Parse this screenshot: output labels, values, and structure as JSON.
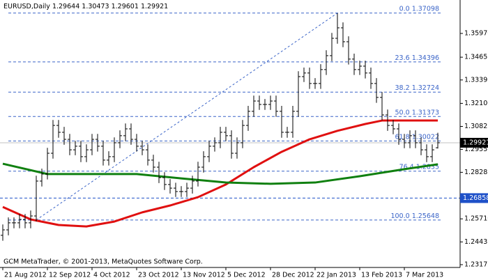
{
  "chart_data": {
    "type": "ohlc",
    "symbol": "EURUSD,Daily",
    "footer": "GCM MetaTrader, © 2001-2013, MetaQuotes Software Corp.",
    "bar_color": "#000000",
    "x": [
      0,
      1,
      2,
      3,
      4,
      5,
      6,
      7,
      8,
      9,
      10,
      11,
      12,
      13,
      14,
      15,
      16,
      17,
      18,
      19,
      20,
      21,
      22,
      23,
      24,
      25,
      26,
      27,
      28,
      29,
      30,
      31,
      32,
      33,
      34,
      35,
      36,
      37,
      38,
      39,
      40,
      41,
      42,
      43,
      44,
      45,
      46,
      47,
      48,
      49,
      50,
      51,
      52,
      53,
      54,
      55,
      56,
      57,
      58,
      59,
      60,
      61,
      62,
      63,
      64,
      65,
      66,
      67,
      68,
      69,
      70,
      71,
      72,
      73,
      74,
      75,
      76,
      77,
      78
    ],
    "open": [
      1.248,
      1.251,
      1.2549,
      1.2549,
      1.2568,
      1.2549,
      1.2587,
      1.278,
      1.2819,
      1.2934,
      1.3088,
      1.305,
      1.3011,
      1.2953,
      1.2973,
      1.2915,
      1.2953,
      1.3011,
      1.2973,
      1.2896,
      1.2915,
      1.2992,
      1.3031,
      1.3069,
      1.3011,
      1.2973,
      1.2953,
      1.2896,
      1.2857,
      1.2799,
      1.2761,
      1.2741,
      1.2722,
      1.2722,
      1.2741,
      1.278,
      1.2857,
      1.2915,
      1.2973,
      1.2992,
      1.305,
      1.3031,
      1.2934,
      1.2992,
      1.3088,
      1.3166,
      1.3223,
      1.3204,
      1.3204,
      1.3223,
      1.3166,
      1.305,
      1.305,
      1.3166,
      1.3358,
      1.3378,
      1.332,
      1.332,
      1.3397,
      1.3474,
      1.357,
      1.3628,
      1.3551,
      1.3455,
      1.3397,
      1.3416,
      1.3378,
      1.332,
      1.3243,
      1.3146,
      1.3088,
      1.3069,
      1.3011,
      1.2992,
      1.3031,
      1.2992,
      1.2953,
      1.2915,
      1.29644
    ],
    "high": [
      1.254,
      1.2579,
      1.2579,
      1.2598,
      1.2598,
      1.2617,
      1.281,
      1.2849,
      1.2964,
      1.3118,
      1.3118,
      1.308,
      1.3041,
      1.3003,
      1.3003,
      1.2983,
      1.3041,
      1.3041,
      1.3003,
      1.2945,
      1.3022,
      1.3061,
      1.3099,
      1.3099,
      1.3041,
      1.3003,
      1.2983,
      1.2926,
      1.2887,
      1.2829,
      1.2791,
      1.2771,
      1.2752,
      1.2771,
      1.281,
      1.2887,
      1.2945,
      1.3003,
      1.3022,
      1.308,
      1.308,
      1.3061,
      1.3022,
      1.3118,
      1.3196,
      1.3253,
      1.3253,
      1.3234,
      1.3253,
      1.3253,
      1.3196,
      1.308,
      1.3196,
      1.3388,
      1.3408,
      1.3408,
      1.335,
      1.3427,
      1.3504,
      1.36,
      1.3709,
      1.3658,
      1.3581,
      1.3485,
      1.3446,
      1.3446,
      1.3408,
      1.335,
      1.3273,
      1.3176,
      1.3118,
      1.3099,
      1.3041,
      1.3061,
      1.3061,
      1.3022,
      1.2983,
      1.2983,
      1.30473
    ],
    "low": [
      1.245,
      1.248,
      1.2519,
      1.2519,
      1.2519,
      1.2519,
      1.2557,
      1.275,
      1.2789,
      1.2904,
      1.302,
      1.2981,
      1.2923,
      1.2923,
      1.2885,
      1.2885,
      1.2923,
      1.2943,
      1.2866,
      1.2866,
      1.2885,
      1.2962,
      1.3001,
      1.2981,
      1.2943,
      1.2923,
      1.2866,
      1.2827,
      1.2769,
      1.2731,
      1.2711,
      1.2692,
      1.2692,
      1.2692,
      1.2711,
      1.275,
      1.2827,
      1.2885,
      1.2943,
      1.2962,
      1.3001,
      1.2904,
      1.2904,
      1.2962,
      1.3058,
      1.3136,
      1.3174,
      1.3174,
      1.3174,
      1.3136,
      1.302,
      1.302,
      1.302,
      1.3136,
      1.3328,
      1.329,
      1.329,
      1.329,
      1.3367,
      1.3444,
      1.354,
      1.3521,
      1.3425,
      1.3367,
      1.3367,
      1.3348,
      1.329,
      1.3213,
      1.3116,
      1.3058,
      1.3039,
      1.2981,
      1.2962,
      1.2962,
      1.2962,
      1.2923,
      1.2885,
      1.2885,
      1.29601
    ],
    "close": [
      1.251,
      1.2549,
      1.2549,
      1.2568,
      1.2549,
      1.2587,
      1.278,
      1.2819,
      1.2934,
      1.3088,
      1.305,
      1.3011,
      1.2953,
      1.2973,
      1.2915,
      1.2953,
      1.3011,
      1.2973,
      1.2896,
      1.2915,
      1.2992,
      1.3031,
      1.3069,
      1.3011,
      1.2973,
      1.2953,
      1.2896,
      1.2857,
      1.2799,
      1.2761,
      1.2741,
      1.2722,
      1.2722,
      1.2741,
      1.278,
      1.2857,
      1.2915,
      1.2973,
      1.2992,
      1.305,
      1.3031,
      1.2934,
      1.2992,
      1.3088,
      1.3166,
      1.3223,
      1.3204,
      1.3204,
      1.3223,
      1.3166,
      1.305,
      1.305,
      1.3166,
      1.3358,
      1.3378,
      1.332,
      1.332,
      1.3397,
      1.3474,
      1.357,
      1.3628,
      1.3551,
      1.3455,
      1.3397,
      1.3416,
      1.3378,
      1.332,
      1.3243,
      1.3146,
      1.3088,
      1.3069,
      1.3011,
      1.2992,
      1.3031,
      1.2992,
      1.2953,
      1.2915,
      1.2953,
      1.29921
    ],
    "lines": [
      {
        "color": "#e01010",
        "x": [
          0,
          5,
          10,
          15,
          20,
          25,
          30,
          35,
          40,
          45,
          50,
          55,
          60,
          65,
          68,
          78
        ],
        "values": [
          1.2637,
          1.2568,
          1.2537,
          1.2529,
          1.2556,
          1.2607,
          1.2645,
          1.2691,
          1.2761,
          1.2857,
          1.2942,
          1.3011,
          1.3058,
          1.3096,
          1.3115,
          1.3115
        ]
      },
      {
        "color": "#108010",
        "x": [
          0,
          8,
          16,
          24,
          32,
          40,
          48,
          56,
          64,
          72,
          78
        ],
        "values": [
          1.2876,
          1.2819,
          1.2819,
          1.2819,
          1.2795,
          1.2772,
          1.2765,
          1.2772,
          1.2807,
          1.2846,
          1.2873
        ]
      }
    ],
    "fibo": {
      "color": "#3a64c8",
      "x": [
        6,
        60
      ],
      "levels": [
        {
          "level": "0.0",
          "price": 1.37098
        },
        {
          "level": "23.6",
          "price": 1.34396
        },
        {
          "level": "38.2",
          "price": 1.32724
        },
        {
          "level": "50.0",
          "price": 1.31373
        },
        {
          "level": "61.8",
          "price": 1.30022
        },
        {
          "level": "76.4",
          "price": 1.2835
        },
        {
          "level": "100.0",
          "price": 1.25648
        }
      ]
    },
    "hline": {
      "value": 1.26858,
      "color": "#1e50c8"
    },
    "xlim": [
      -0.5,
      82
    ],
    "xticks": [
      {
        "value": 0,
        "label": "21 Aug 2012"
      },
      {
        "value": 8,
        "label": "12 Sep 2012"
      },
      {
        "value": 16,
        "label": "4 Oct 2012"
      },
      {
        "value": 24,
        "label": "23 Oct 2012"
      },
      {
        "value": 32,
        "label": "13 Nov 2012"
      },
      {
        "value": 40,
        "label": "5 Dec 2012"
      },
      {
        "value": 48,
        "label": "28 Dec 2012"
      },
      {
        "value": 56,
        "label": "22 Jan 2013"
      },
      {
        "value": 64,
        "label": "13 Feb 2013"
      },
      {
        "value": 72,
        "label": "7 Mar 2013"
      }
    ],
    "ylim": [
      1.2302,
      1.3782
    ],
    "yticks": [
      {
        "value": 1.3597,
        "label": "1.35970"
      },
      {
        "value": 1.34655,
        "label": "1.34655"
      },
      {
        "value": 1.33395,
        "label": "1.33395"
      },
      {
        "value": 1.321,
        "label": "1.32100"
      },
      {
        "value": 1.30825,
        "label": "1.30825"
      },
      {
        "value": 1.29555,
        "label": "1.29555"
      },
      {
        "value": 1.28285,
        "label": "1.28285"
      },
      {
        "value": 1.2571,
        "label": "1.25710"
      },
      {
        "value": 1.24435,
        "label": "1.24435"
      },
      {
        "value": 1.23175,
        "label": "1.23175"
      }
    ]
  }
}
